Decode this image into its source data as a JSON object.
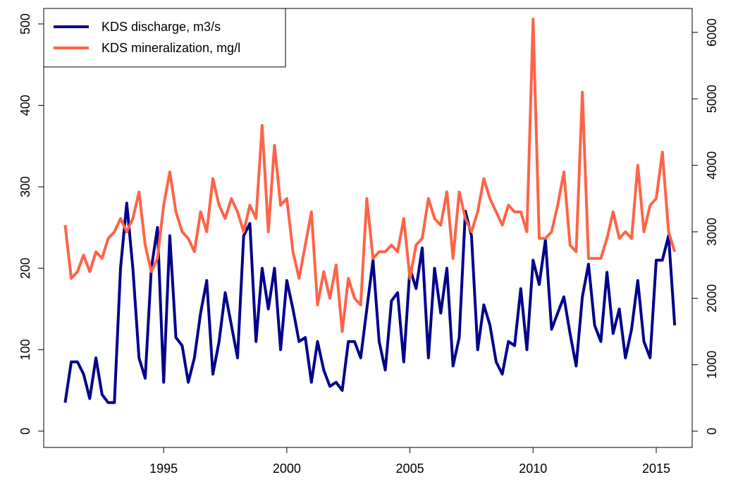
{
  "chart_data": {
    "type": "line",
    "x": [
      1991.0,
      1991.25,
      1991.5,
      1991.75,
      1992.0,
      1992.25,
      1992.5,
      1992.75,
      1993.0,
      1993.25,
      1993.5,
      1993.75,
      1994.0,
      1994.25,
      1994.5,
      1994.75,
      1995.0,
      1995.25,
      1995.5,
      1995.75,
      1996.0,
      1996.25,
      1996.5,
      1996.75,
      1997.0,
      1997.25,
      1997.5,
      1997.75,
      1998.0,
      1998.25,
      1998.5,
      1998.75,
      1999.0,
      1999.25,
      1999.5,
      1999.75,
      2000.0,
      2000.25,
      2000.5,
      2000.75,
      2001.0,
      2001.25,
      2001.5,
      2001.75,
      2002.0,
      2002.25,
      2002.5,
      2002.75,
      2003.0,
      2003.25,
      2003.5,
      2003.75,
      2004.0,
      2004.25,
      2004.5,
      2004.75,
      2005.0,
      2005.25,
      2005.5,
      2005.75,
      2006.0,
      2006.25,
      2006.5,
      2006.75,
      2007.0,
      2007.25,
      2007.5,
      2007.75,
      2008.0,
      2008.25,
      2008.5,
      2008.75,
      2009.0,
      2009.25,
      2009.5,
      2009.75,
      2010.0,
      2010.25,
      2010.5,
      2010.75,
      2011.0,
      2011.25,
      2011.5,
      2011.75,
      2012.0,
      2012.25,
      2012.5,
      2012.75,
      2013.0,
      2013.25,
      2013.5,
      2013.75,
      2014.0,
      2014.25,
      2014.5,
      2014.75,
      2015.0,
      2015.25,
      2015.5,
      2015.75
    ],
    "series": [
      {
        "name": "KDS discharge, m3/s",
        "color": "#00008b",
        "values": [
          35,
          85,
          85,
          70,
          40,
          90,
          45,
          35,
          35,
          200,
          280,
          200,
          90,
          65,
          200,
          250,
          60,
          240,
          115,
          105,
          60,
          90,
          145,
          185,
          70,
          110,
          170,
          130,
          90,
          240,
          255,
          110,
          200,
          150,
          200,
          100,
          185,
          150,
          110,
          115,
          60,
          110,
          75,
          55,
          60,
          50,
          110,
          110,
          90,
          150,
          210,
          110,
          75,
          160,
          170,
          85,
          200,
          175,
          225,
          90,
          200,
          145,
          200,
          80,
          115,
          270,
          240,
          100,
          155,
          130,
          85,
          70,
          110,
          105,
          175,
          100,
          210,
          180,
          235,
          125,
          145,
          165,
          120,
          80,
          165,
          205,
          130,
          110,
          195,
          120,
          150,
          90,
          125,
          185,
          110,
          90,
          210,
          210,
          240,
          130
        ]
      },
      {
        "name": "KDS mineralization, mg/l",
        "color": "#ff6347",
        "axis": "y2",
        "values": [
          3100,
          2300,
          2400,
          2650,
          2400,
          2700,
          2600,
          2900,
          3000,
          3200,
          3000,
          3200,
          3600,
          2800,
          2400,
          2600,
          3400,
          3900,
          3300,
          3000,
          2900,
          2700,
          3300,
          3000,
          3800,
          3400,
          3200,
          3500,
          3300,
          3000,
          3400,
          3200,
          4600,
          3000,
          4300,
          3400,
          3500,
          2700,
          2300,
          2800,
          3300,
          1900,
          2400,
          2000,
          2500,
          1500,
          2300,
          2000,
          1900,
          3500,
          2600,
          2700,
          2700,
          2800,
          2700,
          3200,
          2300,
          2800,
          2900,
          3500,
          3200,
          3100,
          3600,
          2600,
          3600,
          3200,
          3000,
          3300,
          3800,
          3500,
          3300,
          3100,
          3400,
          3300,
          3300,
          3000,
          6200,
          2900,
          2900,
          3000,
          3400,
          3900,
          2800,
          2700,
          5100,
          2600,
          2600,
          2600,
          2900,
          3300,
          2900,
          3000,
          2900,
          4000,
          3000,
          3400,
          3500,
          4200,
          3000,
          2700
        ]
      }
    ],
    "xlim": [
      1990.13,
      2016.46
    ],
    "xticks": [
      1995,
      2000,
      2005,
      2010,
      2015
    ],
    "ylim": [
      -20,
      519
    ],
    "yticks": [
      0,
      100,
      200,
      300,
      400,
      500
    ],
    "y2lim": [
      -244,
      6360
    ],
    "y2ticks": [
      0,
      1000,
      2000,
      3000,
      4000,
      5000,
      6000
    ],
    "legend": "top-left"
  }
}
